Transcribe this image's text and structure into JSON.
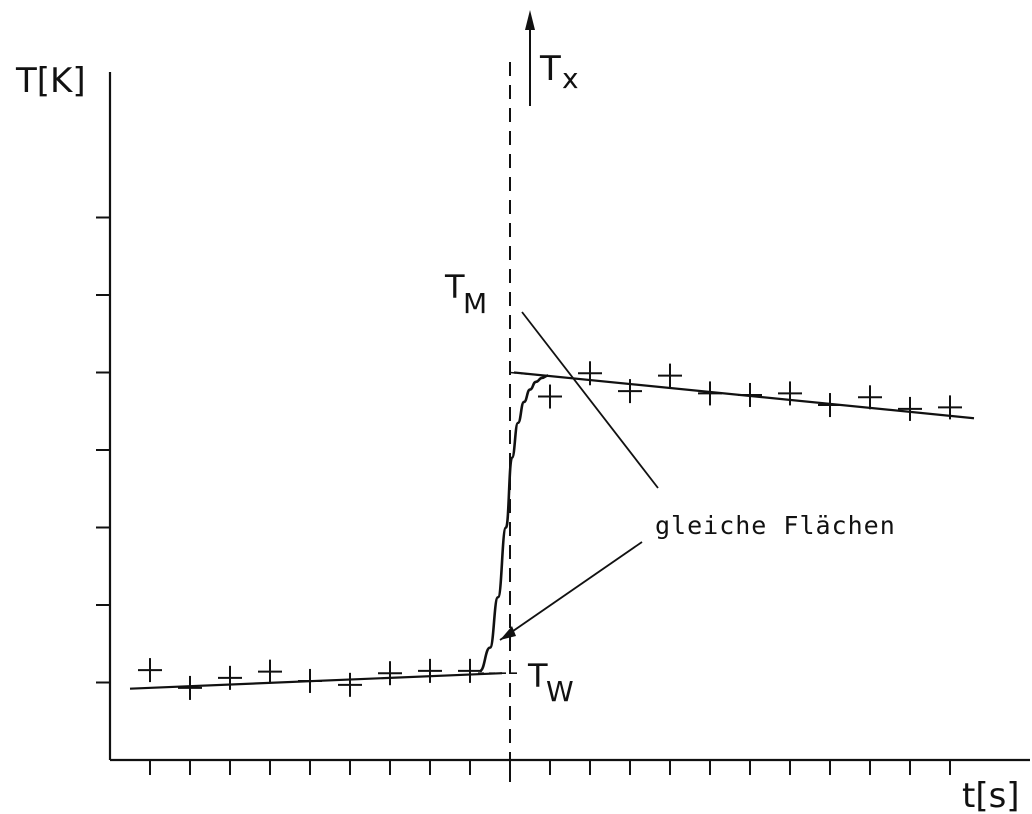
{
  "chart_data": {
    "type": "scatter",
    "title": "",
    "xlabel": "t[s]",
    "ylabel": "T[K]",
    "xlim": [
      0,
      21
    ],
    "ylim": [
      0,
      8.5
    ],
    "x_ticks": [
      1,
      2,
      3,
      4,
      5,
      6,
      7,
      8,
      9,
      10,
      11,
      12,
      13,
      14,
      15,
      16,
      17,
      18,
      19,
      20,
      21
    ],
    "y_ticks": [
      1,
      2,
      3,
      4,
      5,
      6,
      7
    ],
    "grid": false,
    "legend": "none",
    "vertical_axis": {
      "x": 10,
      "label_T": "T",
      "label_sub": "x"
    },
    "series": [
      {
        "kind": "points",
        "x": [
          1,
          2,
          3,
          4,
          5,
          6,
          7,
          8,
          9
        ],
        "y": [
          1.16,
          0.93,
          1.06,
          1.14,
          1.02,
          0.97,
          1.12,
          1.15,
          1.15
        ]
      },
      {
        "kind": "points",
        "x": [
          11,
          12,
          13,
          14,
          15,
          16,
          17,
          18,
          19,
          20,
          21
        ],
        "y": [
          4.69,
          4.99,
          4.76,
          4.96,
          4.73,
          4.71,
          4.73,
          4.58,
          4.68,
          4.53,
          4.55
        ]
      },
      {
        "kind": "line",
        "x": [
          0.5,
          9.8
        ],
        "y": [
          0.92,
          1.12
        ]
      },
      {
        "kind": "line",
        "x": [
          10.1,
          21.6
        ],
        "y": [
          5.0,
          4.41
        ]
      },
      {
        "kind": "curve",
        "x": [
          9.25,
          9.5,
          9.7,
          9.9,
          10.05,
          10.2,
          10.35,
          10.5,
          10.65,
          10.8,
          10.95
        ],
        "y": [
          1.15,
          1.45,
          2.1,
          3.0,
          3.9,
          4.35,
          4.62,
          4.78,
          4.88,
          4.93,
          4.96
        ]
      }
    ],
    "annotations": {
      "tm": {
        "T": "T",
        "sub": "M",
        "y": 5.0
      },
      "tw": {
        "T": "T",
        "sub": "W",
        "y": 1.12
      },
      "areas_text": "gleiche Flächen"
    }
  }
}
